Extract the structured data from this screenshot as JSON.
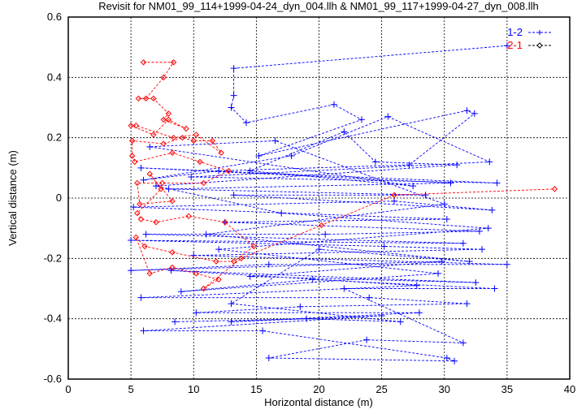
{
  "chart_data": {
    "type": "line",
    "title": "Revisit for NM01_99_114+1999-04-24_dyn_004.llh & NM01_99_117+1999-04-27_dyn_008.llh",
    "xlabel": "Horizontal distance (m)",
    "ylabel": "Vertical distance (m)",
    "xlim": [
      0,
      40
    ],
    "ylim": [
      -0.6,
      0.6
    ],
    "xticks": [
      "0",
      "5",
      "10",
      "15",
      "20",
      "25",
      "30",
      "35",
      "40"
    ],
    "xtick_values": [
      0,
      5,
      10,
      15,
      20,
      25,
      30,
      35,
      40
    ],
    "yticks": [
      "-0.6",
      "-0.4",
      "-0.2",
      "0",
      "0.2",
      "0.4",
      "0.6"
    ],
    "ytick_values": [
      -0.6,
      -0.4,
      -0.2,
      0,
      0.2,
      0.4,
      0.6
    ],
    "grid": true,
    "legend": "top-right",
    "series": [
      {
        "name": "1-2",
        "color": "#0000ff",
        "marker": "plus",
        "points": [
          [
            35,
            0.505
          ],
          [
            13.2,
            0.43
          ],
          [
            13.2,
            0.34
          ],
          [
            13.0,
            0.3
          ],
          [
            14.2,
            0.25
          ],
          [
            21.2,
            0.31
          ],
          [
            23.4,
            0.26
          ],
          [
            15.2,
            0.14
          ],
          [
            31.8,
            0.29
          ],
          [
            32.4,
            0.28
          ],
          [
            27.2,
            0.11
          ],
          [
            12,
            0.09
          ],
          [
            6.0,
            0.06
          ],
          [
            17.8,
            0.14
          ],
          [
            25.5,
            0.27
          ],
          [
            33.6,
            0.12
          ],
          [
            9.8,
            0.07
          ],
          [
            34.2,
            0.05
          ],
          [
            5.8,
            0.1
          ],
          [
            30.5,
            0.05
          ],
          [
            8.0,
            0.03
          ],
          [
            28.5,
            0.01
          ],
          [
            13.2,
            0.01
          ],
          [
            33.8,
            -0.04
          ],
          [
            26.0,
            -0.01
          ],
          [
            5.2,
            -0.03
          ],
          [
            30.2,
            -0.07
          ],
          [
            12.5,
            -0.08
          ],
          [
            32.8,
            -0.11
          ],
          [
            20.5,
            -0.12
          ],
          [
            6.2,
            -0.12
          ],
          [
            31.5,
            -0.15
          ],
          [
            5.0,
            -0.14
          ],
          [
            25.2,
            -0.16
          ],
          [
            33.0,
            -0.17
          ],
          [
            10.0,
            -0.19
          ],
          [
            35.0,
            -0.22
          ],
          [
            16.0,
            -0.22
          ],
          [
            5.0,
            -0.24
          ],
          [
            29.8,
            -0.21
          ],
          [
            14.5,
            -0.26
          ],
          [
            32.5,
            -0.28
          ],
          [
            8.2,
            -0.24
          ],
          [
            27.8,
            -0.29
          ],
          [
            5.8,
            -0.33
          ],
          [
            24.0,
            -0.33
          ],
          [
            31.8,
            -0.35
          ],
          [
            18.5,
            -0.36
          ],
          [
            10.2,
            -0.38
          ],
          [
            28.0,
            -0.38
          ],
          [
            13.0,
            -0.41
          ],
          [
            25.0,
            -0.39
          ],
          [
            6.0,
            -0.44
          ],
          [
            15.5,
            -0.44
          ],
          [
            30.2,
            -0.53
          ],
          [
            30.8,
            -0.54
          ],
          [
            16.0,
            -0.53
          ],
          [
            23.8,
            -0.47
          ],
          [
            31.5,
            -0.48
          ],
          [
            22.0,
            -0.3
          ],
          [
            34.0,
            -0.3
          ],
          [
            19.5,
            -0.27
          ],
          [
            9.0,
            -0.31
          ],
          [
            29.5,
            -0.25
          ],
          [
            12.0,
            -0.17
          ],
          [
            33.5,
            -0.1
          ],
          [
            17.0,
            -0.05
          ],
          [
            7.0,
            0.04
          ],
          [
            31.0,
            0.11
          ],
          [
            24.5,
            0.12
          ],
          [
            22.0,
            0.22
          ],
          [
            14.5,
            0.09
          ],
          [
            27.5,
            0.04
          ],
          [
            6.5,
            0.17
          ],
          [
            16.5,
            0.19
          ],
          [
            30.0,
            -0.02
          ],
          [
            11.0,
            -0.12
          ],
          [
            32.0,
            -0.21
          ],
          [
            20.0,
            -0.17
          ],
          [
            13.0,
            -0.35
          ],
          [
            26.5,
            -0.41
          ],
          [
            19.0,
            -0.4
          ],
          [
            8.5,
            -0.41
          ]
        ]
      },
      {
        "name": "2-1",
        "color": "#ff0000",
        "marker": "diamond",
        "points": [
          [
            6.0,
            0.45
          ],
          [
            8.4,
            0.45
          ],
          [
            7.6,
            0.4
          ],
          [
            6.2,
            0.33
          ],
          [
            5.6,
            0.33
          ],
          [
            6.8,
            0.33
          ],
          [
            8.0,
            0.28
          ],
          [
            7.6,
            0.26
          ],
          [
            9.4,
            0.23
          ],
          [
            8.0,
            0.26
          ],
          [
            6.8,
            0.21
          ],
          [
            5.0,
            0.24
          ],
          [
            5.4,
            0.24
          ],
          [
            8.4,
            0.2
          ],
          [
            10.2,
            0.21
          ],
          [
            12.2,
            0.15
          ],
          [
            11.5,
            0.19
          ],
          [
            10.0,
            0.19
          ],
          [
            9.1,
            0.2
          ],
          [
            7.6,
            0.18
          ],
          [
            5.1,
            0.19
          ],
          [
            5.1,
            0.14
          ],
          [
            5.3,
            0.12
          ],
          [
            8.3,
            0.15
          ],
          [
            10.5,
            0.12
          ],
          [
            12.8,
            0.09
          ],
          [
            10.8,
            0.05
          ],
          [
            7.5,
            0.05
          ],
          [
            5.5,
            0.05
          ],
          [
            5.7,
            -0.02
          ],
          [
            8.3,
            -0.01
          ],
          [
            6.5,
            0.08
          ],
          [
            7.4,
            0.03
          ],
          [
            5.5,
            -0.05
          ],
          [
            5.8,
            -0.07
          ],
          [
            7.0,
            -0.08
          ],
          [
            9.6,
            -0.06
          ],
          [
            12.5,
            -0.08
          ],
          [
            14.8,
            -0.16
          ],
          [
            13.2,
            -0.21
          ],
          [
            11.8,
            -0.21
          ],
          [
            8.3,
            -0.18
          ],
          [
            6.1,
            -0.16
          ],
          [
            5.4,
            -0.13
          ],
          [
            6.5,
            -0.25
          ],
          [
            8.3,
            -0.23
          ],
          [
            10.2,
            -0.25
          ],
          [
            12.0,
            -0.27
          ],
          [
            10.8,
            -0.3
          ],
          [
            13.8,
            -0.2
          ],
          [
            20.2,
            -0.09
          ],
          [
            26.0,
            0.01
          ],
          [
            38.8,
            0.03
          ]
        ]
      }
    ]
  }
}
